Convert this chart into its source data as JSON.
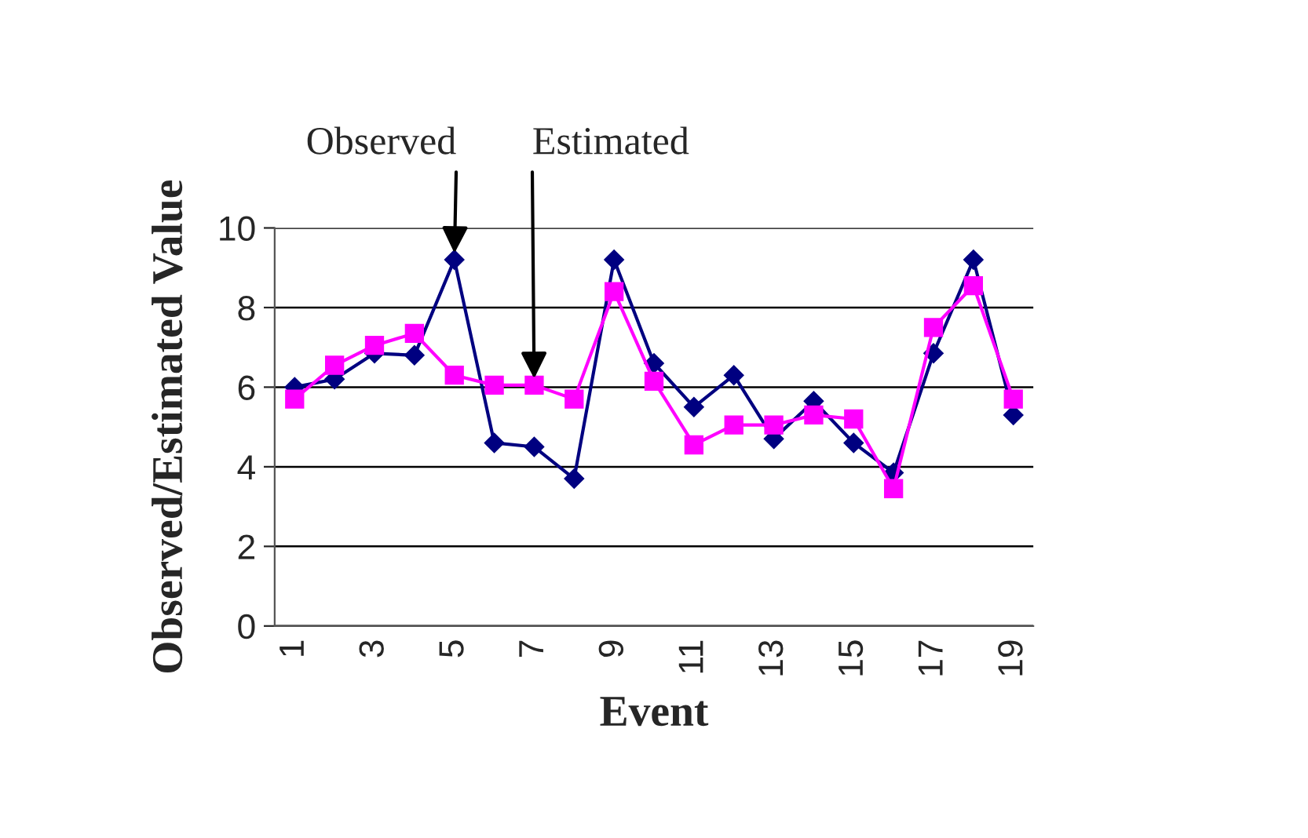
{
  "chart_data": {
    "type": "line",
    "xlabel": "Event",
    "ylabel": "Observed/Estimated Value",
    "categories": [
      "1",
      null,
      "3",
      null,
      "5",
      null,
      "7",
      null,
      "9",
      null,
      "11",
      null,
      "13",
      null,
      "15",
      null,
      "17",
      null,
      "19"
    ],
    "series": [
      {
        "color": "#000080",
        "marker": "diamond",
        "values": [
          6.0,
          6.2,
          6.85,
          6.8,
          9.2,
          4.6,
          4.5,
          3.7,
          9.2,
          6.6,
          5.5,
          6.3,
          4.7,
          5.65,
          4.6,
          3.85,
          6.85,
          9.2,
          5.3
        ]
      },
      {
        "color": "#ff00ff",
        "marker": "square",
        "values": [
          5.7,
          6.55,
          7.05,
          7.35,
          6.3,
          6.05,
          6.05,
          5.7,
          8.4,
          6.15,
          4.55,
          5.05,
          5.05,
          5.3,
          5.2,
          3.45,
          7.5,
          8.55,
          5.7
        ]
      }
    ],
    "annotations": [
      {
        "text": "Observed",
        "x": "5",
        "y": 9.2
      },
      {
        "text": "Estimated",
        "x": "7",
        "y": 6.05
      }
    ],
    "ylim": [
      0,
      10
    ],
    "yticks": [
      0,
      2,
      4,
      6,
      8,
      10
    ],
    "grid": "y",
    "legend": false
  }
}
